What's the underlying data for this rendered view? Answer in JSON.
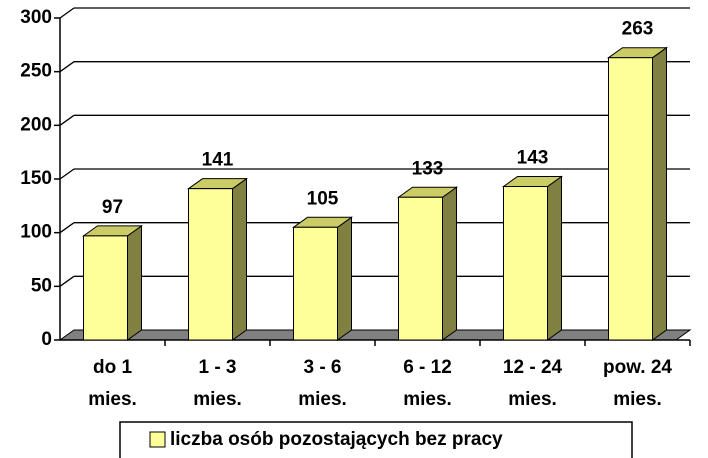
{
  "chart_data": {
    "type": "bar3d",
    "categories": [
      "do 1\nmies.",
      "1 - 3\nmies.",
      "3 - 6\nmies.",
      "6 - 12\nmies.",
      "12 - 24\nmies.",
      "pow. 24\nmies."
    ],
    "series": [
      {
        "name": "liczba osób pozostających bez pracy",
        "color": "#ffff99",
        "values": [
          97,
          141,
          105,
          133,
          143,
          263
        ]
      }
    ],
    "ylim": [
      0,
      300
    ],
    "yticks": [
      0,
      50,
      100,
      150,
      200,
      250,
      300
    ],
    "grid": true,
    "legend": "bottom"
  }
}
